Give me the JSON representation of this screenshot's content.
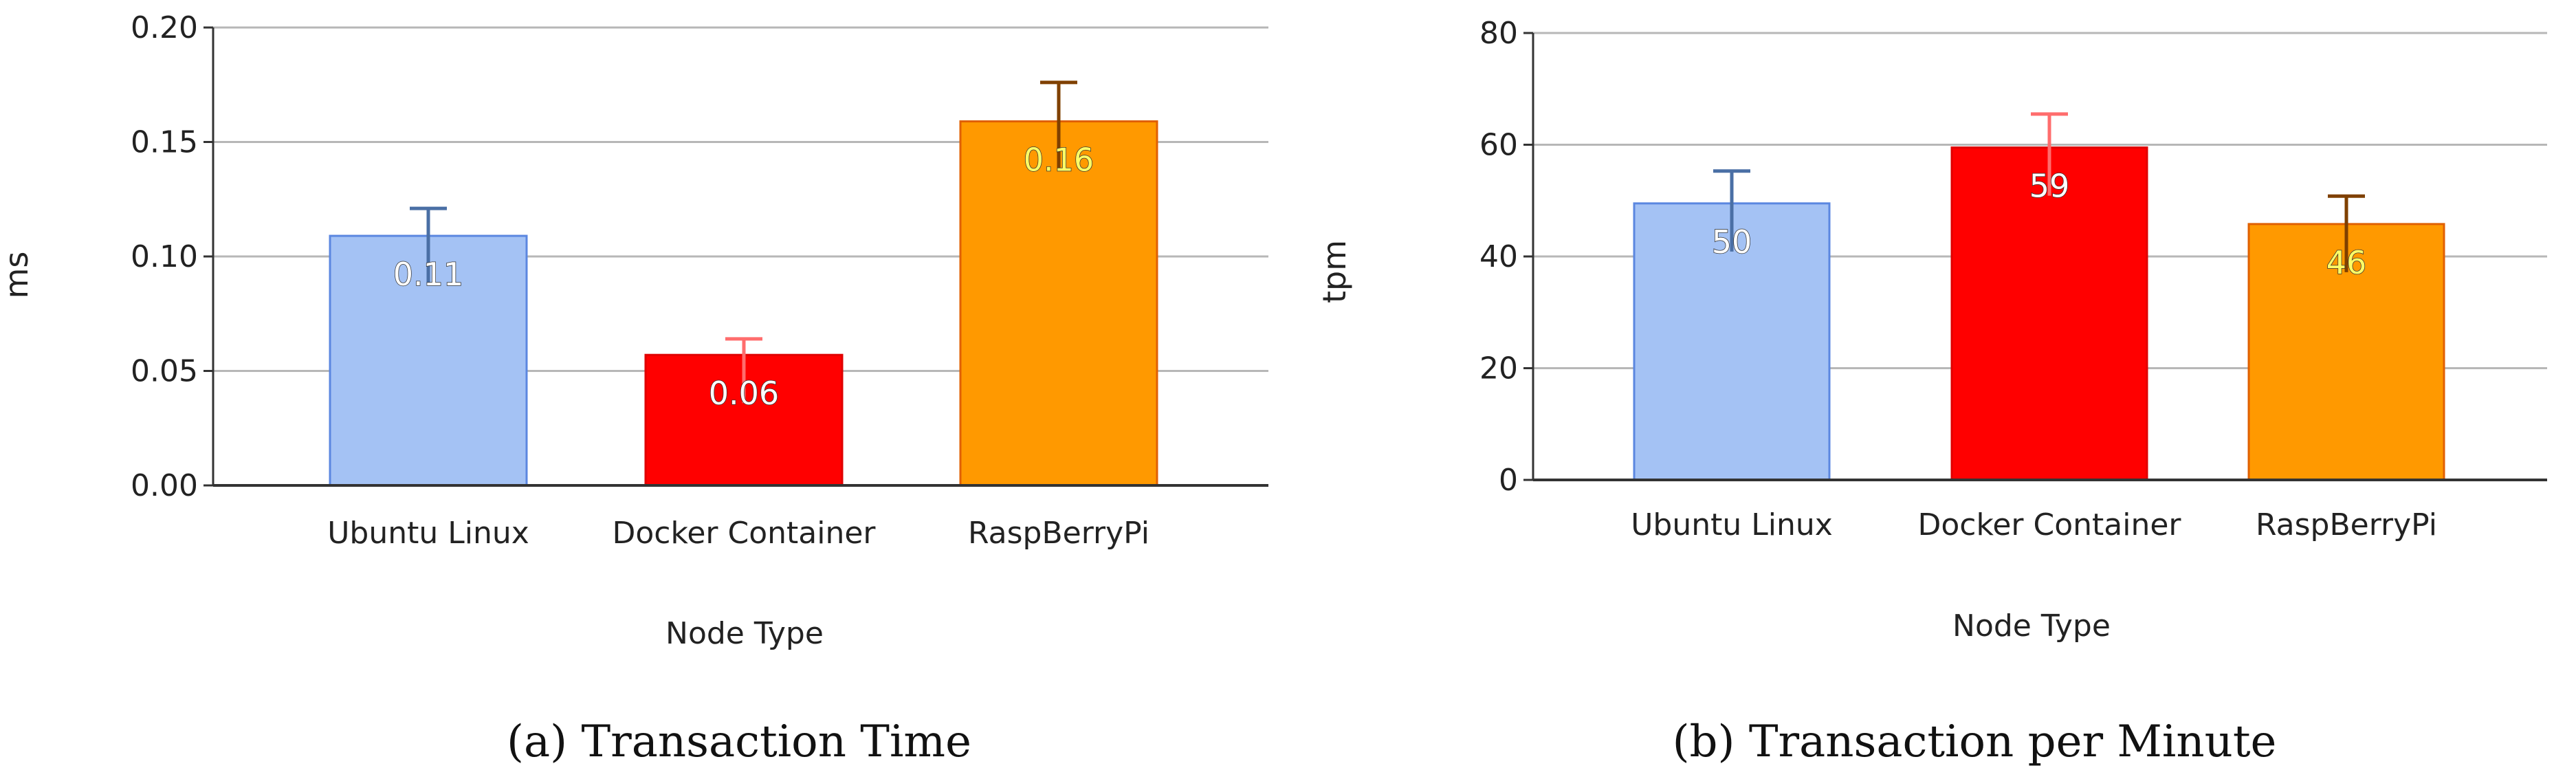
{
  "chart_data": [
    {
      "id": "a",
      "type": "bar",
      "categories": [
        "Ubuntu Linux",
        "Docker Container",
        "RaspBerryPi"
      ],
      "values": [
        0.11,
        0.06,
        0.16
      ],
      "bar_values": [
        0.109,
        0.057,
        0.159
      ],
      "error_upper": [
        0.121,
        0.064,
        0.176
      ],
      "data_labels": [
        "0.11",
        "0.06",
        "0.16"
      ],
      "colors": [
        "#a4c2f4",
        "#ff0000",
        "#ff9900"
      ],
      "error_colors": [
        "#4a6fa5",
        "#ff6d6d",
        "#7f4000"
      ],
      "label_colors": [
        "#ffffff",
        "#ffffff",
        "#ffff66"
      ],
      "border_colors": [
        "#5b87e0",
        "#e00000",
        "#e06000"
      ],
      "yticks": [
        0.0,
        0.05,
        0.1,
        0.15,
        0.2
      ],
      "ytick_labels": [
        "0.00",
        "0.05",
        "0.10",
        "0.15",
        "0.20"
      ],
      "ylim": [
        0,
        0.2
      ],
      "xlabel": "Node Type",
      "ylabel": "ms",
      "grid": true,
      "caption_letter": "(a)",
      "caption_title": "Transaction Time"
    },
    {
      "id": "b",
      "type": "bar",
      "categories": [
        "Ubuntu Linux",
        "Docker Container",
        "RaspBerryPi"
      ],
      "values": [
        50,
        59,
        46
      ],
      "bar_values": [
        49.5,
        59.5,
        45.8
      ],
      "error_upper": [
        55.3,
        65.5,
        50.8
      ],
      "data_labels": [
        "50",
        "59",
        "46"
      ],
      "colors": [
        "#a4c2f4",
        "#ff0000",
        "#ff9900"
      ],
      "error_colors": [
        "#4a6fa5",
        "#ff6d6d",
        "#7f4000"
      ],
      "label_colors": [
        "#ffffff",
        "#ffffff",
        "#ffff66"
      ],
      "border_colors": [
        "#5b87e0",
        "#e00000",
        "#e06000"
      ],
      "yticks": [
        0,
        20,
        40,
        60,
        80
      ],
      "ytick_labels": [
        "0",
        "20",
        "40",
        "60",
        "80"
      ],
      "ylim": [
        0,
        80
      ],
      "xlabel": "Node Type",
      "ylabel": "tpm",
      "grid": true,
      "caption_letter": "(b)",
      "caption_title": "Transaction per Minute"
    }
  ]
}
